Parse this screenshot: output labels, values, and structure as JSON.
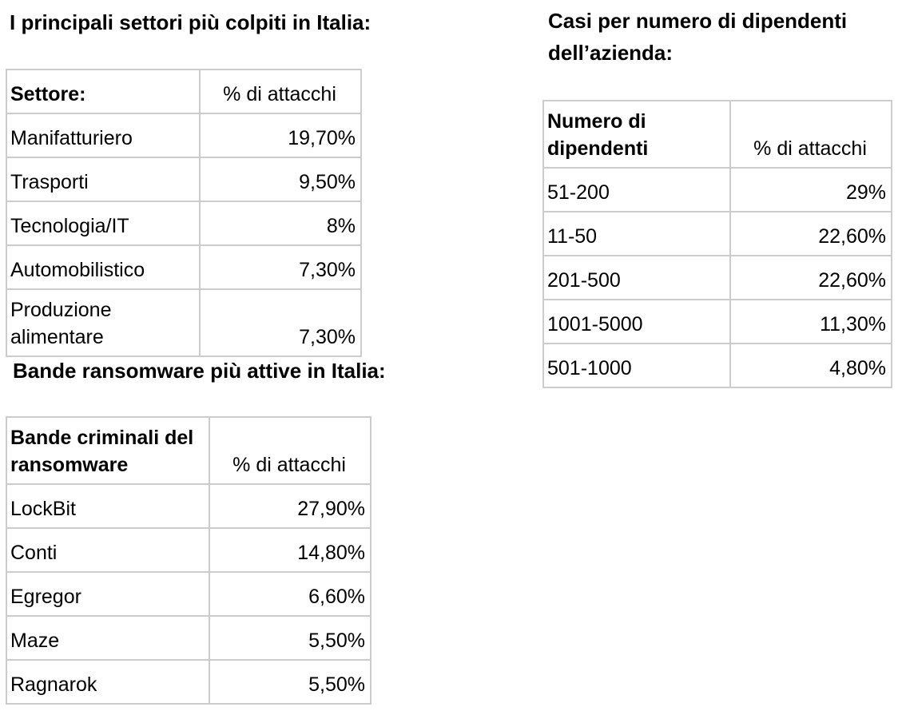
{
  "sectors": {
    "title": "I principali settori più colpiti in Italia:",
    "header": {
      "col1": "Settore:",
      "col2": "% di attacchi"
    },
    "rows": [
      {
        "label": "Manifatturiero",
        "value": "19,70%"
      },
      {
        "label": "Trasporti",
        "value": "9,50%"
      },
      {
        "label": "Tecnologia/IT",
        "value": "8%"
      },
      {
        "label": "Automobilistico",
        "value": "7,30%"
      },
      {
        "label": "Produzione alimentare",
        "value": "7,30%"
      }
    ]
  },
  "gangs": {
    "title": "Bande ransomware più attive in Italia:",
    "header": {
      "col1": "Bande criminali del ransomware",
      "col2": "% di attacchi"
    },
    "rows": [
      {
        "label": "LockBit",
        "value": "27,90%"
      },
      {
        "label": "Conti",
        "value": "14,80%"
      },
      {
        "label": "Egregor",
        "value": "6,60%"
      },
      {
        "label": "Maze",
        "value": "5,50%"
      },
      {
        "label": "Ragnarok",
        "value": "5,50%"
      }
    ]
  },
  "employees": {
    "title": "Casi per numero di dipendenti dell’azienda:",
    "header": {
      "col1": "Numero di dipendenti",
      "col2": "% di attacchi"
    },
    "rows": [
      {
        "label": "51-200",
        "value": "29%"
      },
      {
        "label": "11-50",
        "value": "22,60%"
      },
      {
        "label": "201-500",
        "value": "22,60%"
      },
      {
        "label": "1001-5000",
        "value": "11,30%"
      },
      {
        "label": "501-1000",
        "value": "4,80%"
      }
    ]
  }
}
